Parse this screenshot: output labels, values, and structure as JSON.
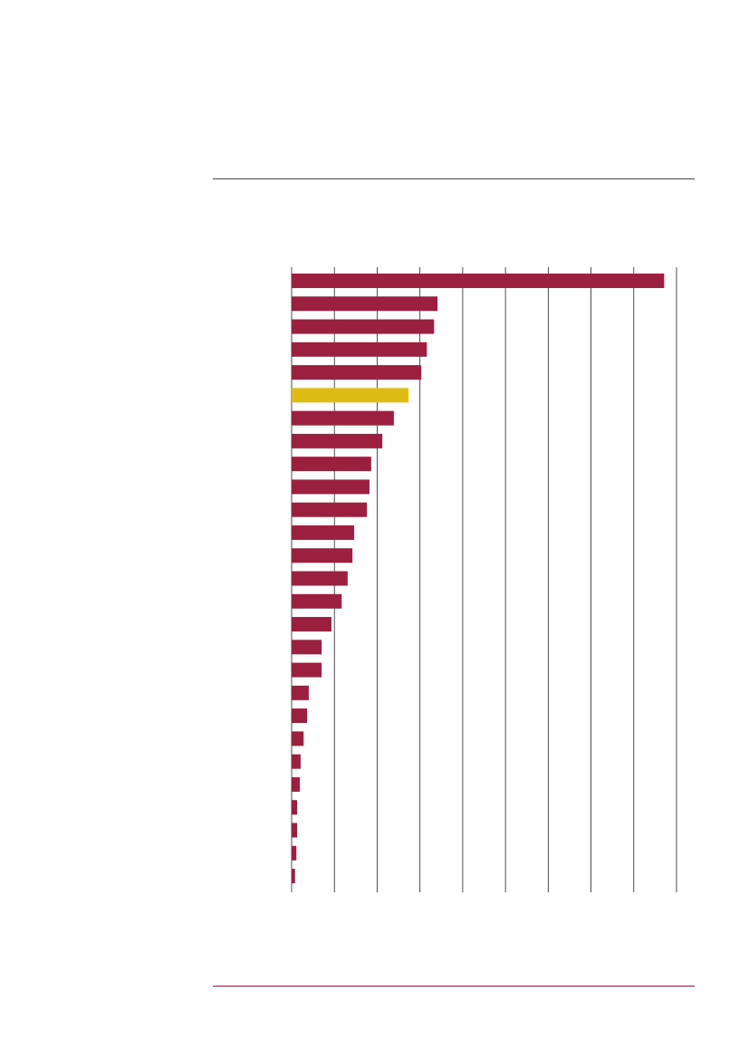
{
  "chart_data": {
    "type": "hbar",
    "categories": [
      null,
      null,
      null,
      null,
      null,
      null,
      null,
      null,
      null,
      null,
      null,
      null,
      null,
      null,
      null,
      null,
      null,
      null,
      null,
      null,
      null,
      null,
      null,
      null,
      null,
      null,
      null
    ],
    "values": [
      8.71,
      3.41,
      3.33,
      3.16,
      3.03,
      2.73,
      2.39,
      2.12,
      1.86,
      1.82,
      1.76,
      1.46,
      1.42,
      1.31,
      1.17,
      0.93,
      0.7,
      0.7,
      0.4,
      0.36,
      0.28,
      0.21,
      0.19,
      0.13,
      0.13,
      0.11,
      0.08
    ],
    "colors": [
      "#9b2040",
      "#9b2040",
      "#9b2040",
      "#9b2040",
      "#9b2040",
      "#dcbb14",
      "#9b2040",
      "#9b2040",
      "#9b2040",
      "#9b2040",
      "#9b2040",
      "#9b2040",
      "#9b2040",
      "#9b2040",
      "#9b2040",
      "#9b2040",
      "#9b2040",
      "#9b2040",
      "#9b2040",
      "#9b2040",
      "#9b2040",
      "#9b2040",
      "#9b2040",
      "#9b2040",
      "#9b2040",
      "#9b2040",
      "#9b2040"
    ],
    "xlim": [
      0,
      9
    ],
    "xticks": [
      0,
      1,
      2,
      3,
      4,
      5,
      6,
      7,
      8,
      9
    ],
    "grid": true
  }
}
